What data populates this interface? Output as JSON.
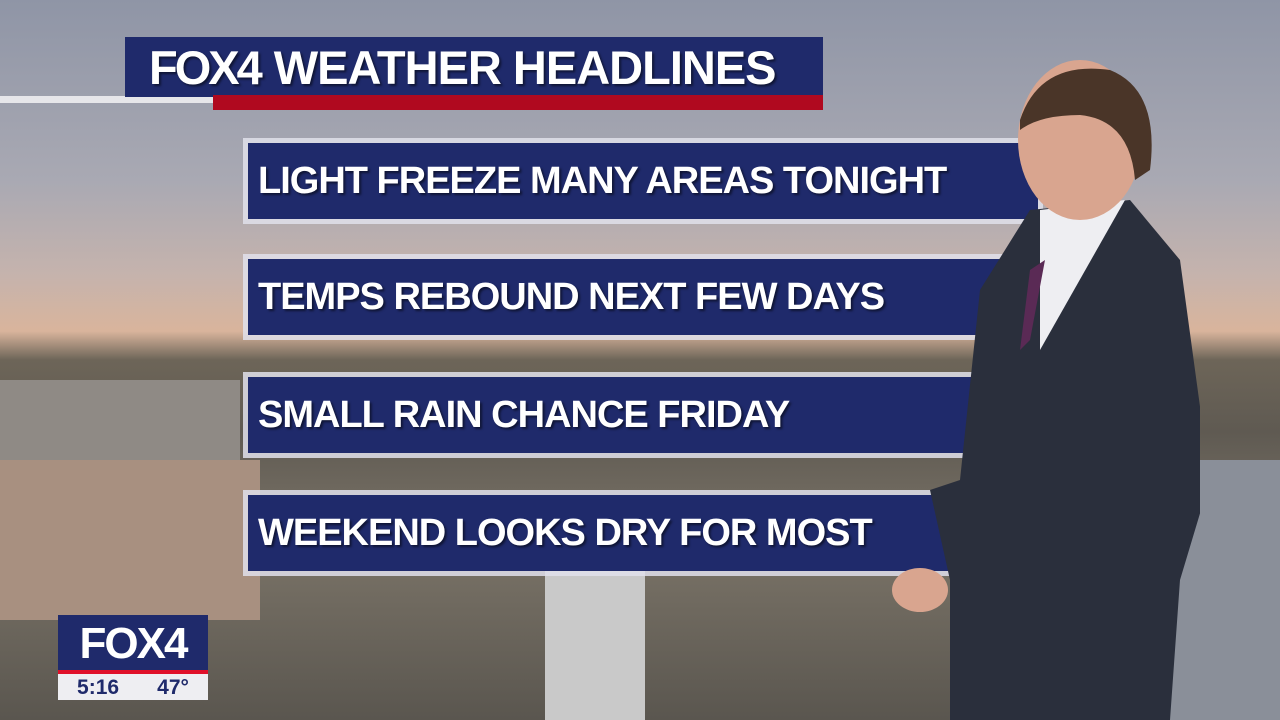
{
  "header": {
    "logo": "FOX4",
    "title": "WEATHER HEADLINES"
  },
  "headlines": [
    {
      "text": "LIGHT FREEZE MANY AREAS TONIGHT"
    },
    {
      "text": "TEMPS REBOUND NEXT FEW DAYS"
    },
    {
      "text": "SMALL RAIN CHANCE FRIDAY"
    },
    {
      "text": "WEEKEND LOOKS DRY FOR MOST"
    }
  ],
  "bug": {
    "logo": "FOX4",
    "time": "5:16",
    "temperature": "47°"
  },
  "colors": {
    "navy": "#1f2a6b",
    "red": "#b0091f"
  }
}
